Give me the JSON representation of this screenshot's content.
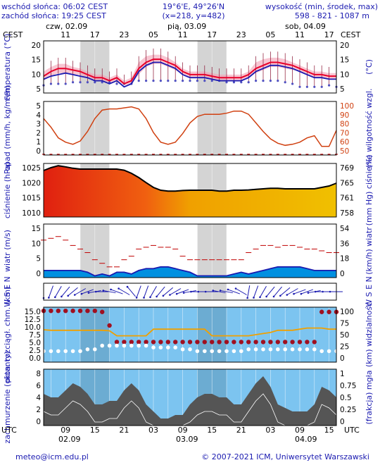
{
  "header": {
    "sunrise": "wschód słońca: 06:02 CEST",
    "sunset": "zachód słońca: 19:25 CEST",
    "coords": "19°6'E, 49°26'N",
    "grid": "(x=218, y=482)",
    "alt_title": "wysokość (min, środek, max)",
    "alt_values": "598 - 821 - 1087 m"
  },
  "top_axis": {
    "tz": "CEST",
    "days": [
      "czw, 02.09",
      "pią, 03.09",
      "sob, 04.09"
    ],
    "hours": [
      "11",
      "17",
      "23",
      "05",
      "11",
      "17",
      "23",
      "05",
      "11",
      "17"
    ]
  },
  "bottom_axis": {
    "tz": "UTC",
    "hours": [
      "09",
      "15",
      "21",
      "03",
      "09",
      "15",
      "21",
      "03",
      "09",
      "15"
    ],
    "dates": [
      "02.09",
      "03.09",
      "04.09"
    ]
  },
  "footer": {
    "email": "meteo@icm.edu.pl",
    "copyright": "© 2007-2021 ICM, Uniwersytet Warszawski"
  },
  "colors": {
    "label": "#1a1ab0",
    "night": "#d4d4d4",
    "temperature": "#e8002a",
    "perceived": "#1a1ab0",
    "humidity": "#d04010",
    "wind_mean": "#1a1ab0",
    "gust": "#c00000",
    "pressure_high": "#e02010",
    "pressure_low": "#f0c000",
    "sky": "#7cc4f0",
    "visibility": "#f0a000",
    "cloud_base": "#a01020"
  },
  "chart_data": [
    {
      "type": "line",
      "panel": "temperature",
      "ylabel_left": "temperatura (°C)",
      "ylabel_right": "(°C)",
      "ylim": [
        5,
        22
      ],
      "yticks_left": [
        "20",
        "15",
        "10",
        "5"
      ],
      "yticks_right": [
        "20",
        "15",
        "10",
        "5"
      ],
      "x_hours_utc": [
        0,
        3,
        6,
        9,
        12,
        15,
        18,
        21,
        24,
        27,
        30,
        33,
        36,
        39,
        42,
        45,
        48,
        51,
        54,
        57,
        60,
        63,
        66,
        69,
        72,
        75,
        78,
        81,
        84,
        87,
        90,
        93,
        96,
        99,
        102,
        105,
        108,
        111,
        114,
        117,
        120
      ],
      "series": [
        {
          "name": "temperatura",
          "values": [
            10.5,
            12,
            13,
            13,
            12.5,
            12,
            11,
            10,
            10,
            9,
            10,
            8,
            9,
            13,
            15,
            16,
            16,
            15,
            14,
            12,
            11,
            11,
            11,
            10.5,
            10,
            10,
            10,
            10,
            11,
            13,
            14,
            15,
            15,
            14.5,
            14,
            13,
            12,
            11,
            11,
            10.5,
            10.5
          ]
        },
        {
          "name": "temperatura odczuwalna",
          "values": [
            9.5,
            10.5,
            11,
            11.5,
            11,
            10.5,
            10,
            9,
            9,
            8,
            9,
            7,
            8,
            12,
            14,
            15,
            15,
            14,
            13,
            11,
            10,
            10,
            10,
            9.5,
            9,
            9,
            9,
            9,
            10,
            12,
            13,
            14,
            14,
            13.5,
            13,
            12,
            11,
            10,
            10,
            9.5,
            9.5
          ]
        },
        {
          "name": "punkt rosy",
          "values": [
            7.5,
            8,
            8,
            8,
            8.5,
            8.5,
            8.5,
            8.5,
            8.5,
            8.5,
            8,
            8,
            8,
            9,
            9,
            9,
            9,
            9,
            9,
            9,
            9,
            9,
            9,
            9,
            9,
            8.5,
            8.5,
            8.5,
            8.5,
            9,
            9,
            9,
            9,
            8.5,
            8,
            7,
            7,
            7,
            7,
            7.5,
            7
          ]
        },
        {
          "name": "rozrzut max",
          "values": [
            12,
            13.5,
            14.5,
            14.5,
            13.5,
            13,
            12,
            11,
            11,
            10,
            11,
            9,
            10,
            15,
            17,
            17.5,
            17.5,
            16.5,
            15,
            13,
            12,
            12,
            12,
            11.5,
            11,
            11,
            11,
            11,
            12,
            15,
            16,
            16.5,
            16.5,
            16,
            15,
            14,
            13,
            12,
            12,
            11.5,
            11.5
          ]
        },
        {
          "name": "rozrzut min",
          "values": [
            9,
            10.5,
            11.5,
            11.5,
            11,
            11,
            10,
            9,
            9,
            8,
            9,
            7.5,
            8,
            11,
            13.5,
            14.5,
            14.5,
            13.5,
            12.5,
            11,
            10,
            10,
            10,
            9.5,
            9,
            9,
            9,
            9,
            10,
            11.5,
            12.5,
            13.5,
            13.5,
            13,
            12.5,
            12,
            11,
            10,
            10,
            9.5,
            9.5
          ]
        }
      ]
    },
    {
      "type": "line",
      "panel": "precipitation_humidity",
      "ylabel_left": "opad (mm/h, kg/m²/h)",
      "ylabel_right": "(%) wilgotność wzgl.",
      "ylim_left": [
        0,
        5
      ],
      "ylim_right": [
        50,
        100
      ],
      "yticks_left": [
        "5",
        "4",
        "3",
        "2",
        "1",
        "0"
      ],
      "yticks_right": [
        "100",
        "90",
        "80",
        "70",
        "60",
        "50"
      ],
      "series": [
        {
          "name": "wilgotność",
          "values": [
            84,
            76,
            66,
            62,
            60,
            63,
            72,
            84,
            92,
            93,
            93,
            94,
            95,
            93,
            84,
            71,
            62,
            60,
            62,
            70,
            80,
            86,
            88,
            88,
            88,
            89,
            91,
            91,
            88,
            80,
            72,
            65,
            61,
            59,
            60,
            62,
            66,
            68,
            58,
            58,
            73
          ]
        },
        {
          "name": "opad",
          "values": [
            0,
            0,
            0,
            0,
            0,
            0,
            0,
            0,
            0,
            0,
            0,
            0,
            0,
            0,
            0,
            0,
            0,
            0,
            0,
            0,
            0,
            0,
            0,
            0,
            0,
            0,
            0,
            0,
            0,
            0,
            0,
            0,
            0,
            0,
            0,
            0,
            0,
            0,
            0,
            0,
            0
          ]
        }
      ]
    },
    {
      "type": "area",
      "panel": "pressure",
      "ylabel_left": "ciśnienie (hPa)",
      "ylabel_right": "(mm Hg) ciśnienie",
      "ylim": [
        1008,
        1027
      ],
      "yticks_left": [
        "1025",
        "1020",
        "1015",
        "1010"
      ],
      "yticks_right": [
        "769",
        "765",
        "761",
        "758"
      ],
      "series": [
        {
          "name": "ciśnienie",
          "values": [
            1024.5,
            1025.5,
            1026.2,
            1025.8,
            1025.3,
            1025,
            1025,
            1025,
            1025,
            1025,
            1025,
            1024.6,
            1023.5,
            1022,
            1020.2,
            1018.5,
            1017.5,
            1017.2,
            1017.2,
            1017.4,
            1017.5,
            1017.5,
            1017.5,
            1017.5,
            1017.2,
            1017.2,
            1017.5,
            1017.5,
            1017.6,
            1017.8,
            1018,
            1018.2,
            1018.2,
            1018,
            1018,
            1018,
            1018,
            1018,
            1018.5,
            1019,
            1020
          ]
        }
      ]
    },
    {
      "type": "line",
      "panel": "wind",
      "ylabel_left": "wiatr (m/s)",
      "ylabel_right": "(km/h) wiatr",
      "ylim": [
        0,
        15
      ],
      "yticks_left": [
        "15",
        "10",
        "5",
        "0"
      ],
      "yticks_right": [
        "54",
        "36",
        "18",
        "0"
      ],
      "series": [
        {
          "name": "porywy",
          "values": [
            10.5,
            11,
            11.5,
            10.5,
            9,
            8,
            7,
            5,
            4,
            3,
            3,
            5,
            6,
            8,
            8.5,
            9,
            8.5,
            8.5,
            8,
            6,
            5,
            5,
            5,
            5,
            5,
            5,
            5,
            5,
            7,
            8,
            9,
            9,
            8.5,
            9,
            9,
            8.5,
            8,
            8,
            7.5,
            7,
            7
          ]
        },
        {
          "name": "prędkość wiatru",
          "values": [
            2,
            2,
            2,
            2,
            2,
            2,
            1.5,
            0.5,
            1,
            0.5,
            1.5,
            1.5,
            1,
            2,
            2.5,
            2.5,
            3,
            3,
            2.5,
            2,
            1.5,
            0.5,
            0.5,
            0.5,
            0.5,
            0.5,
            1,
            1.5,
            1,
            1.5,
            2,
            2.5,
            3,
            3,
            3,
            3,
            2.5,
            2,
            2,
            2,
            2
          ]
        }
      ]
    },
    {
      "type": "scatter",
      "panel": "wind_direction",
      "ylabel_left": "W S E N",
      "ylabel_right": "W S E N",
      "series": [
        {
          "name": "kierunek (°)",
          "values": [
            180,
            200,
            210,
            220,
            230,
            240,
            250,
            260,
            270,
            280,
            290,
            300,
            320,
            200,
            200,
            210,
            220,
            230,
            240,
            250,
            260,
            270,
            270,
            270,
            280,
            280,
            290,
            300,
            190,
            200,
            210,
            220,
            220,
            230,
            240,
            250,
            250,
            260,
            270,
            270,
            270
          ]
        }
      ]
    },
    {
      "type": "line",
      "panel": "visibility_cloudbase",
      "ylabel_left": "pion. rozciągł. chm. (km)",
      "ylabel_right": "(km) widzialność",
      "ylim_left": [
        0,
        15
      ],
      "ylim_right": [
        0,
        100
      ],
      "yticks_left": [
        "15.0",
        "12.5",
        "10.0",
        "7.5",
        "5.0",
        "2.5",
        "0.0"
      ],
      "yticks_right": [
        "100",
        "75",
        "50",
        "25",
        "0"
      ],
      "series": [
        {
          "name": "widzialność",
          "values": [
            59,
            58,
            58,
            58,
            58,
            58,
            58,
            58,
            58,
            57,
            48,
            48,
            48,
            48,
            48,
            60,
            60,
            60,
            60,
            60,
            60,
            60,
            60,
            48,
            48,
            48,
            48,
            48,
            48,
            50,
            52,
            54,
            58,
            58,
            58,
            60,
            62,
            62,
            62,
            60,
            60
          ]
        },
        {
          "name": "podstawa chmur",
          "values": [
            14,
            14,
            14,
            14,
            14,
            14,
            14,
            14,
            13.7,
            10,
            5.5,
            5.5,
            5.5,
            5.5,
            5.5,
            5.5,
            5.5,
            5.5,
            5.5,
            5.5,
            5.5,
            5.5,
            5.5,
            5.5,
            5.5,
            5.5,
            5.5,
            5.5,
            5.5,
            5.5,
            5.5,
            5.5,
            5.5,
            5.5,
            5.5,
            5.5,
            5.5,
            5.5,
            13.7,
            13.7,
            13.7
          ]
        },
        {
          "name": "rozciągłość",
          "values": [
            3,
            3,
            3,
            3,
            3,
            3,
            3.5,
            3.5,
            4.5,
            4.5,
            4.5,
            4.5,
            4.5,
            4.5,
            4.5,
            4,
            4,
            4,
            4,
            3.5,
            3.5,
            3,
            3,
            3,
            3,
            3,
            3,
            3,
            3.5,
            3.5,
            3.5,
            3.5,
            3.5,
            3.5,
            3.5,
            3.5,
            3.5,
            3.5,
            3,
            3,
            3
          ]
        }
      ]
    },
    {
      "type": "area",
      "panel": "cloud_cover",
      "ylabel_left": "zachmurzenie (oktanty)",
      "ylabel_right": "(frakcja) mgła",
      "ylim": [
        0,
        8
      ],
      "yticks_left": [
        "8",
        "6",
        "4",
        "2",
        "0"
      ],
      "yticks_right": [
        "1",
        "0.75",
        "0.5",
        "0.25",
        "0"
      ],
      "series": [
        {
          "name": "zachmurzenie",
          "values": [
            4.5,
            4,
            4,
            5,
            6,
            5.5,
            4.5,
            3,
            3,
            3.5,
            3.5,
            5,
            6,
            5,
            3,
            2,
            1,
            1,
            1.5,
            1.5,
            3,
            4,
            4.5,
            4.5,
            4,
            4,
            3,
            3,
            4.5,
            6,
            7,
            5.5,
            3,
            2.5,
            2,
            2,
            2,
            3,
            5.5,
            5,
            4
          ]
        },
        {
          "name": "mgła",
          "values": [
            0,
            0,
            0,
            0,
            0,
            0,
            0,
            0,
            0,
            0,
            0,
            0,
            0,
            0,
            0,
            0,
            0,
            0,
            0,
            0,
            0,
            0,
            0,
            0,
            0,
            0,
            0,
            0,
            0,
            0,
            0,
            0,
            0,
            0,
            0,
            0,
            0,
            0,
            0,
            0,
            0
          ]
        }
      ]
    }
  ]
}
